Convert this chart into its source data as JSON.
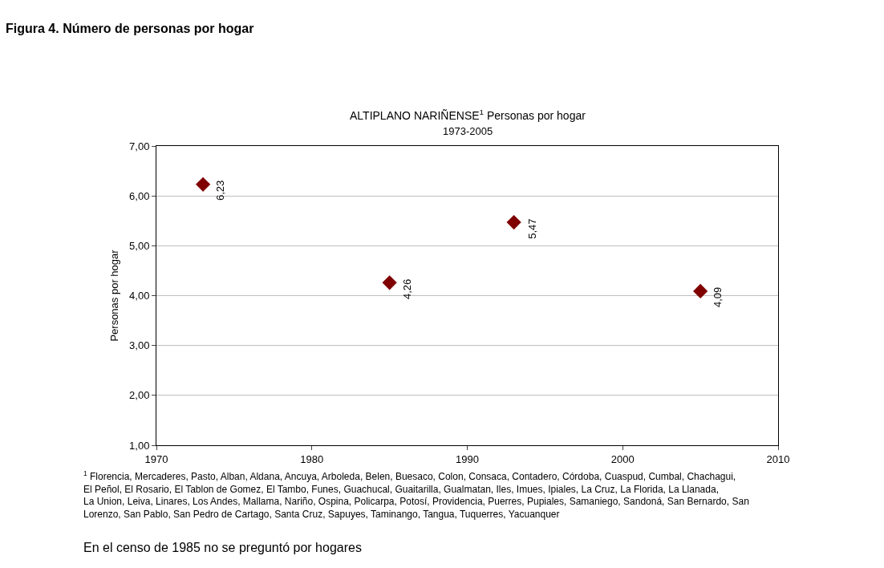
{
  "chart_data": {
    "type": "scatter",
    "title": "ALTIPLANO NARIÑENSE$^{1}$ Personas por hogar",
    "subtitle": "1973-2005",
    "ylabel": "Personas por hogar",
    "annotations": [
      "Figura 4. Número de personas por hogar",
      "$^{1}$ Florencia, Mercaderes, Pasto, Alban, Aldana, Ancuya, Arboleda, Belen, Buesaco, Colon, Consaca, Contadero, Córdoba, Cuaspud, Cumbal, Chachagui, El Peñol, El Rosario, El Tablon de Gomez, El Tambo, Funes, Guachucal, Guaitarilla, Gualmatan, Iles, Imues, Ipiales, La Cruz, La Florida, La Llanada, La Union, Leiva, Linares, Los Andes, Mallama, Nariño, Ospina, Policarpa, Potosí, Providencia, Puerres, Pupiales, Samaniego, Sandoná, San Bernardo, San Lorenzo, San Pablo, San Pedro de Cartago, Santa Cruz, Sapuyes, Taminango, Tangua, Tuquerres, Yacuanquer",
      "En el censo de 1985 no se preguntó por hogares"
    ],
    "x": [
      1973,
      1985,
      1993,
      2005
    ],
    "values": [
      6.23,
      4.26,
      5.47,
      4.09
    ],
    "value_labels": [
      "6,23",
      "4,26",
      "5,47",
      "4,09"
    ],
    "color": "#800000",
    "marker": "diamond",
    "xlim": [
      1970,
      2010
    ],
    "xticks": [
      1970,
      1980,
      1990,
      2000,
      2010
    ],
    "ylim": [
      1,
      7
    ],
    "yticks": [
      {
        "value": 1,
        "label": "1,00"
      },
      {
        "value": 2,
        "label": "2,00"
      },
      {
        "value": 3,
        "label": "3,00"
      },
      {
        "value": 4,
        "label": "4,00"
      },
      {
        "value": 5,
        "label": "5,00"
      },
      {
        "value": 6,
        "label": "6,00"
      },
      {
        "value": 7,
        "label": "7,00"
      }
    ],
    "grid": "y"
  }
}
